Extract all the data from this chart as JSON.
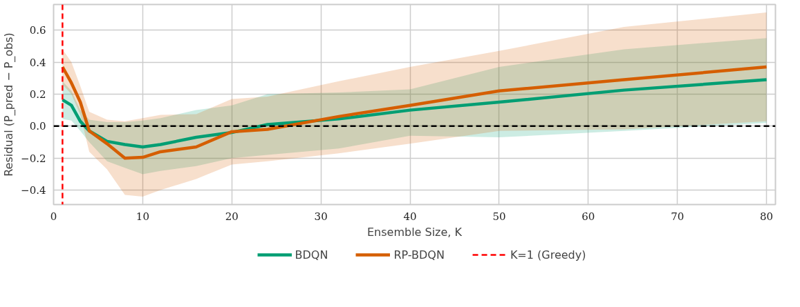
{
  "chart_data": {
    "type": "line",
    "xlabel": "Ensemble Size, K",
    "ylabel": "Residual (P_pred − P_obs)",
    "x": [
      1,
      2,
      3,
      4,
      6,
      8,
      10,
      12,
      16,
      20,
      24,
      32,
      40,
      50,
      64,
      80
    ],
    "series": [
      {
        "name": "BDQN",
        "color": "#009e73",
        "values": [
          0.165,
          0.13,
          0.03,
          -0.03,
          -0.095,
          -0.115,
          -0.13,
          -0.115,
          -0.07,
          -0.04,
          0.01,
          0.045,
          0.1,
          0.15,
          0.225,
          0.29
        ],
        "lower": [
          0.045,
          0.035,
          -0.03,
          -0.1,
          -0.22,
          -0.26,
          -0.3,
          -0.28,
          -0.25,
          -0.2,
          -0.18,
          -0.14,
          -0.06,
          -0.07,
          -0.03,
          0.02
        ],
        "upper": [
          0.28,
          0.22,
          0.1,
          0.04,
          0.025,
          0.025,
          0.035,
          0.05,
          0.1,
          0.13,
          0.2,
          0.21,
          0.23,
          0.37,
          0.48,
          0.55
        ]
      },
      {
        "name": "RP-BDQN",
        "color": "#d55e00",
        "values": [
          0.37,
          0.27,
          0.15,
          -0.03,
          -0.11,
          -0.2,
          -0.195,
          -0.16,
          -0.13,
          -0.035,
          -0.02,
          0.06,
          0.13,
          0.22,
          0.29,
          0.37
        ],
        "lower": [
          0.26,
          0.2,
          0.07,
          -0.16,
          -0.27,
          -0.43,
          -0.44,
          -0.4,
          -0.33,
          -0.24,
          -0.22,
          -0.17,
          -0.11,
          -0.03,
          -0.02,
          0.03
        ],
        "upper": [
          0.48,
          0.4,
          0.25,
          0.09,
          0.04,
          0.03,
          0.05,
          0.07,
          0.075,
          0.17,
          0.185,
          0.28,
          0.37,
          0.47,
          0.62,
          0.71
        ]
      }
    ],
    "ref_lines": [
      {
        "axis": "y",
        "value": 0,
        "label": null,
        "color": "#000000",
        "line_style": "dashed"
      },
      {
        "axis": "x",
        "value": 1,
        "label": "K=1 (Greedy)",
        "color": "#ff0000",
        "line_style": "dashed"
      }
    ],
    "xlim": [
      0,
      81
    ],
    "ylim": [
      -0.49,
      0.76
    ],
    "xticks": [
      0,
      10,
      20,
      30,
      40,
      50,
      60,
      70,
      80
    ],
    "yticks": [
      {
        "value": -0.4,
        "label": "−0.4"
      },
      {
        "value": -0.2,
        "label": "−0.2"
      },
      {
        "value": 0,
        "label": "0.0"
      },
      0.2,
      0.4,
      0.6
    ],
    "grid": true,
    "legend": "bottom",
    "line_style": "solid",
    "marker": "none"
  }
}
